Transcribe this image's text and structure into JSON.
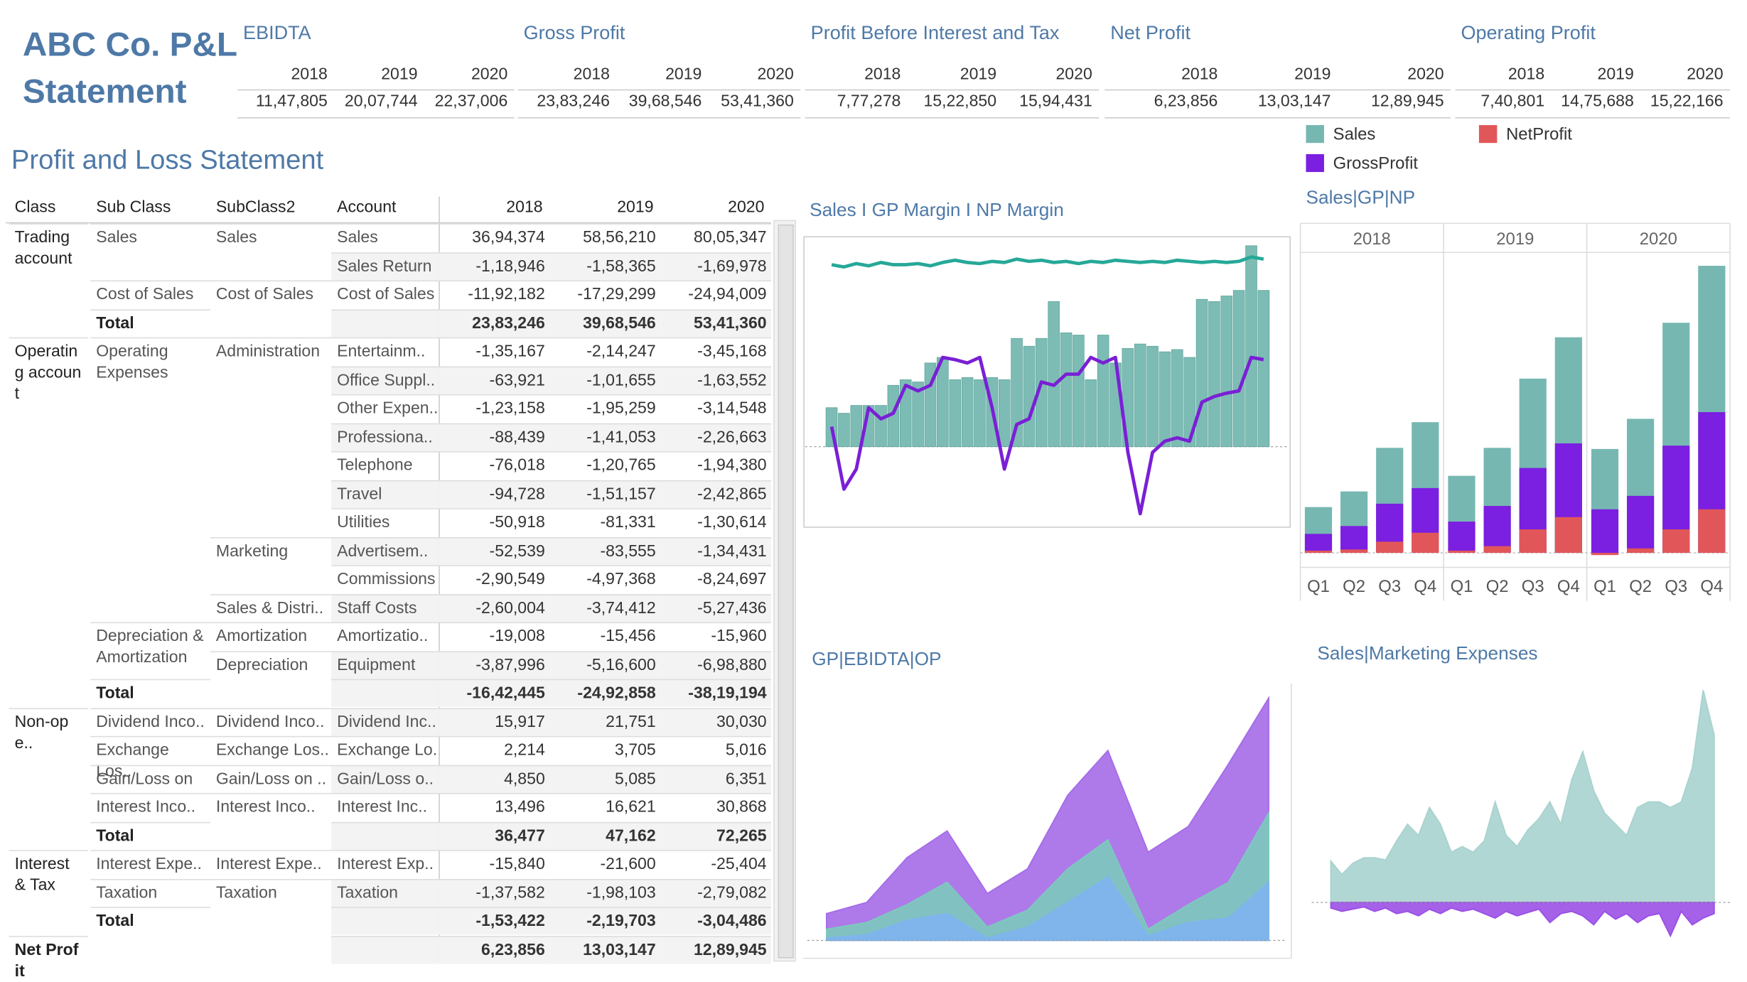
{
  "header": {
    "title": "ABC Co. P&L Statement"
  },
  "kpis": [
    {
      "title": "EBIDTA",
      "years": [
        2018,
        2019,
        2020
      ],
      "values": [
        "11,47,805",
        "20,07,744",
        "22,37,006"
      ]
    },
    {
      "title": "Gross Profit",
      "years": [
        2018,
        2019,
        2020
      ],
      "values": [
        "23,83,246",
        "39,68,546",
        "53,41,360"
      ]
    },
    {
      "title": "Profit Before Interest and Tax",
      "years": [
        2018,
        2019,
        2020
      ],
      "values": [
        "7,77,278",
        "15,22,850",
        "15,94,431"
      ]
    },
    {
      "title": "Net Profit",
      "years": [
        2018,
        2019,
        2020
      ],
      "values": [
        "6,23,856",
        "13,03,147",
        "12,89,945"
      ]
    },
    {
      "title": "Operating Profit",
      "years": [
        2018,
        2019,
        2020
      ],
      "values": [
        "7,40,801",
        "14,75,688",
        "15,22,166"
      ]
    }
  ],
  "table": {
    "title": "Profit and Loss Statement",
    "columns": [
      "Class",
      "Sub Class",
      "SubClass2",
      "Account",
      2018,
      2019,
      2020
    ],
    "rows": [
      {
        "class": "Trading account",
        "sub_class": "Sales",
        "subclass2": "Sales",
        "account": "Sales",
        "values": [
          "36,94,374",
          "58,56,210",
          "80,05,347"
        ]
      },
      {
        "account": "Sales Return",
        "values": [
          "-1,18,946",
          "-1,58,365",
          "-1,69,978"
        ]
      },
      {
        "sub_class": "Cost of Sales",
        "subclass2": "Cost of Sales",
        "account": "Cost of Sales",
        "values": [
          "-11,92,182",
          "-17,29,299",
          "-24,94,009"
        ]
      },
      {
        "sub_class": "Total",
        "values": [
          "23,83,246",
          "39,68,546",
          "53,41,360"
        ],
        "total": true
      },
      {
        "class": "Operating account",
        "sub_class": "Operating Expenses",
        "subclass2": "Administration",
        "account": "Entertainm..",
        "values": [
          "-1,35,167",
          "-2,14,247",
          "-3,45,168"
        ]
      },
      {
        "account": "Office Suppl..",
        "values": [
          "-63,921",
          "-1,01,655",
          "-1,63,552"
        ]
      },
      {
        "account": "Other Expen..",
        "values": [
          "-1,23,158",
          "-1,95,259",
          "-3,14,548"
        ]
      },
      {
        "account": "Professiona..",
        "values": [
          "-88,439",
          "-1,41,053",
          "-2,26,663"
        ]
      },
      {
        "account": "Telephone",
        "values": [
          "-76,018",
          "-1,20,765",
          "-1,94,380"
        ]
      },
      {
        "account": "Travel",
        "values": [
          "-94,728",
          "-1,51,157",
          "-2,42,865"
        ]
      },
      {
        "account": "Utilities",
        "values": [
          "-50,918",
          "-81,331",
          "-1,30,614"
        ]
      },
      {
        "subclass2": "Marketing",
        "account": "Advertisem..",
        "values": [
          "-52,539",
          "-83,555",
          "-1,34,431"
        ]
      },
      {
        "account": "Commissions",
        "values": [
          "-2,90,549",
          "-4,97,368",
          "-8,24,697"
        ]
      },
      {
        "subclass2": "Sales & Distri..",
        "account": "Staff Costs",
        "values": [
          "-2,60,004",
          "-3,74,412",
          "-5,27,436"
        ]
      },
      {
        "sub_class": "Depreciation & Amortization",
        "subclass2": "Amortization",
        "account": "Amortizatio..",
        "values": [
          "-19,008",
          "-15,456",
          "-15,960"
        ]
      },
      {
        "subclass2": "Depreciation",
        "account": "Equipment",
        "values": [
          "-3,87,996",
          "-5,16,600",
          "-6,98,880"
        ]
      },
      {
        "sub_class": "Total",
        "values": [
          "-16,42,445",
          "-24,92,858",
          "-38,19,194"
        ],
        "total": true
      },
      {
        "class": "Non-ope..",
        "sub_class": "Dividend Inco..",
        "subclass2": "Dividend Inco..",
        "account": "Dividend Inc..",
        "values": [
          "15,917",
          "21,751",
          "30,030"
        ]
      },
      {
        "sub_class": "Exchange Los..",
        "subclass2": "Exchange Los..",
        "account": "Exchange Lo..",
        "values": [
          "2,214",
          "3,705",
          "5,016"
        ]
      },
      {
        "sub_class": "Gain/Loss on ..",
        "subclass2": "Gain/Loss on ..",
        "account": "Gain/Loss o..",
        "values": [
          "4,850",
          "5,085",
          "6,351"
        ]
      },
      {
        "sub_class": "Interest Inco..",
        "subclass2": "Interest Inco..",
        "account": "Interest Inc..",
        "values": [
          "13,496",
          "16,621",
          "30,868"
        ]
      },
      {
        "sub_class": "Total",
        "values": [
          "36,477",
          "47,162",
          "72,265"
        ],
        "total": true
      },
      {
        "class": "Interest & Tax",
        "sub_class": "Interest Expe..",
        "subclass2": "Interest Expe..",
        "account": "Interest Exp..",
        "values": [
          "-15,840",
          "-21,600",
          "-25,404"
        ]
      },
      {
        "sub_class": "Taxation",
        "subclass2": "Taxation",
        "account": "Taxation",
        "values": [
          "-1,37,582",
          "-1,98,103",
          "-2,79,082"
        ]
      },
      {
        "sub_class": "Total",
        "values": [
          "-1,53,422",
          "-2,19,703",
          "-3,04,486"
        ],
        "total": true
      },
      {
        "class": "Net Profit",
        "values": [
          "6,23,856",
          "13,03,147",
          "12,89,945"
        ],
        "total": true
      }
    ]
  },
  "chart_data": [
    {
      "type": "combo",
      "title": "Sales I GP Margin I NP Margin",
      "ylim": [
        -70,
        185
      ],
      "series": [
        {
          "type": "bar",
          "color": "#7dbcb4",
          "values": [
            35,
            30,
            37,
            37,
            37,
            55,
            60,
            58,
            75,
            80,
            60,
            62,
            60,
            62,
            60,
            97,
            90,
            97,
            130,
            102,
            100,
            60,
            100,
            75,
            88,
            92,
            90,
            85,
            87,
            80,
            132,
            130,
            135,
            140,
            180,
            140
          ]
        },
        {
          "type": "line",
          "color": "#26a898",
          "values": [
            163,
            161,
            164,
            162,
            165,
            163,
            163,
            164,
            162,
            165,
            167,
            165,
            164,
            166,
            165,
            168,
            166,
            167,
            165,
            166,
            164,
            166,
            165,
            167,
            166,
            165,
            166,
            165,
            167,
            166,
            165,
            166,
            165,
            166,
            170,
            168
          ]
        },
        {
          "type": "line",
          "color": "#7a1fd6",
          "values": [
            18,
            -38,
            -20,
            35,
            25,
            30,
            55,
            50,
            55,
            80,
            78,
            75,
            80,
            35,
            -20,
            20,
            25,
            58,
            55,
            65,
            65,
            80,
            75,
            80,
            -5,
            -60,
            -5,
            5,
            8,
            5,
            40,
            45,
            48,
            50,
            80,
            78
          ]
        }
      ]
    },
    {
      "type": "bar",
      "title": "Sales|GP|NP",
      "groups": [
        2018,
        2019,
        2020
      ],
      "categories": [
        "Q1",
        "Q2",
        "Q3",
        "Q4",
        "Q1",
        "Q2",
        "Q3",
        "Q4",
        "Q1",
        "Q2",
        "Q3",
        "Q4"
      ],
      "ylim": [
        -10,
        265
      ],
      "legend": "top",
      "series": [
        {
          "name": "Sales",
          "color": "#76b7b2",
          "values": [
            41,
            55,
            94,
            117,
            69,
            94,
            156,
            193,
            93,
            120,
            206,
            257
          ]
        },
        {
          "name": "GrossProfit",
          "color": "#7b1fe0",
          "values": [
            17,
            24,
            44,
            58,
            28,
            42,
            76,
            98,
            39,
            51,
            96,
            126
          ]
        },
        {
          "name": "NetProfit",
          "color": "#e15759",
          "values": [
            2,
            3,
            10,
            18,
            2,
            6,
            21,
            32,
            -2,
            4,
            21,
            39
          ]
        }
      ]
    },
    {
      "type": "area",
      "title": "GP|EBIDTA|OP",
      "ylim": [
        0,
        222
      ],
      "series": [
        {
          "color": "#a56ce8",
          "values": [
            24,
            34,
            74,
            98,
            42,
            64,
            130,
            170,
            79,
            102,
            158,
            217
          ]
        },
        {
          "color": "#7ccabd",
          "values": [
            10,
            16,
            32,
            52,
            12,
            27,
            64,
            90,
            10,
            32,
            52,
            114
          ]
        },
        {
          "color": "#7fb4f0",
          "values": [
            2,
            5,
            18,
            24,
            2,
            12,
            34,
            57,
            4,
            16,
            20,
            52
          ]
        }
      ]
    },
    {
      "type": "area",
      "title": "Sales|Marketing Expenses",
      "ylim": [
        -45,
        200
      ],
      "series": [
        {
          "color": "#a9d3cf",
          "values": [
            37,
            25,
            35,
            40,
            40,
            38,
            55,
            70,
            60,
            85,
            70,
            45,
            50,
            45,
            55,
            90,
            60,
            50,
            65,
            75,
            90,
            70,
            110,
            135,
            100,
            80,
            70,
            60,
            85,
            90,
            90,
            85,
            90,
            120,
            190,
            150
          ]
        },
        {
          "color": "#9b50e6",
          "values": [
            -5,
            -8,
            -6,
            -4,
            -8,
            -5,
            -10,
            -8,
            -12,
            -6,
            -10,
            -5,
            -8,
            -6,
            -10,
            -14,
            -8,
            -12,
            -9,
            -6,
            -18,
            -10,
            -8,
            -12,
            -20,
            -8,
            -15,
            -10,
            -18,
            -12,
            -10,
            -30,
            -8,
            -20,
            -14,
            -10
          ]
        }
      ]
    }
  ]
}
